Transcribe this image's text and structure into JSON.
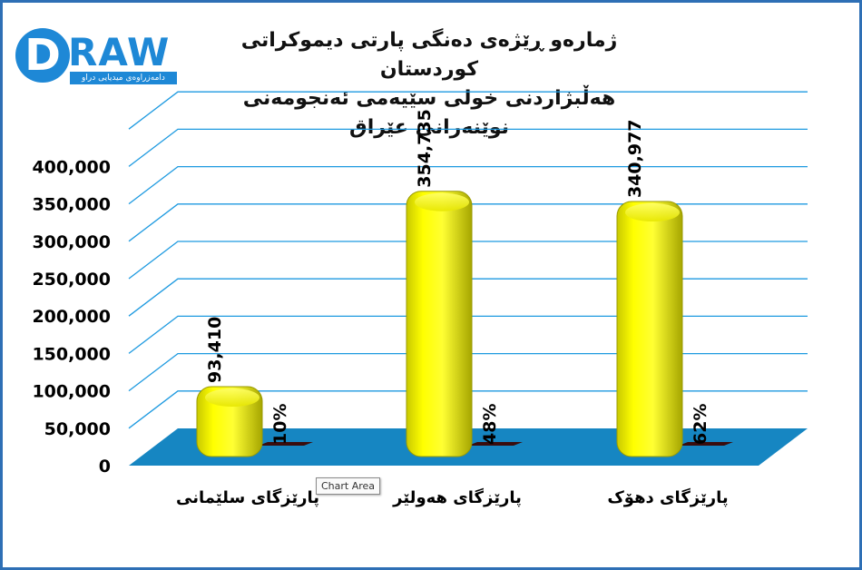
{
  "logo": {
    "letter": "D",
    "rest": "RAW",
    "tagline": "دامەزراوەی میدیایی دراو"
  },
  "chart_data": {
    "type": "bar",
    "title": "ژمارەو ڕێژەی دەنگی پارتی دیموکراتی کوردستان",
    "subtitle": "هەڵبژاردنی خولی سێیەمی ئەنجومەنی نوێنەرانی عێراق",
    "categories": [
      "پارێزگای سلێمانی",
      "پارێزگای هەولێر",
      "پارێزگای دهۆک"
    ],
    "series": [
      {
        "values": [
          93410,
          354735,
          340977
        ],
        "labels": [
          "93,410",
          "354,735",
          "340,977"
        ]
      },
      {
        "values": [
          10,
          48,
          62
        ],
        "labels": [
          "10%",
          "48%",
          "62%"
        ]
      }
    ],
    "ylim": [
      0,
      450000
    ],
    "yticks": [
      "0",
      "50,000",
      "100,000",
      "150,000",
      "200,000",
      "250,000",
      "300,000",
      "350,000",
      "400,000"
    ],
    "grid": true,
    "colors": {
      "bars": "#ffff00",
      "bar_shade": "#b3b300",
      "percent_bars": "#3a0d0d",
      "floor": "#1686c2",
      "gridlines": "#1e9ae0"
    }
  },
  "tooltip": "Chart Area"
}
